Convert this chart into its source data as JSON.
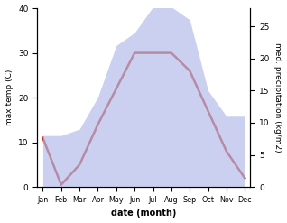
{
  "months": [
    "Jan",
    "Feb",
    "Mar",
    "Apr",
    "May",
    "Jun",
    "Jul",
    "Aug",
    "Sep",
    "Oct",
    "Nov",
    "Dec"
  ],
  "max_temp": [
    11,
    0.5,
    5,
    14,
    22,
    30,
    30,
    30,
    26,
    17,
    8,
    2
  ],
  "precipitation_mm": [
    8,
    8,
    9,
    14,
    22,
    24,
    28,
    28,
    26,
    15,
    11,
    11
  ],
  "temp_color": "#c0392b",
  "precip_fill_color": "#b0b8e8",
  "temp_ylim": [
    0,
    40
  ],
  "precip_ylim": [
    0,
    27.8
  ],
  "right_yticks": [
    0,
    5,
    10,
    15,
    20,
    25
  ],
  "left_yticks": [
    0,
    10,
    20,
    30,
    40
  ],
  "xlabel": "date (month)",
  "ylabel_left": "max temp (C)",
  "ylabel_right": "med. precipitation (kg/m2)",
  "background_color": "#ffffff",
  "line_width": 1.8,
  "fill_alpha": 0.65
}
